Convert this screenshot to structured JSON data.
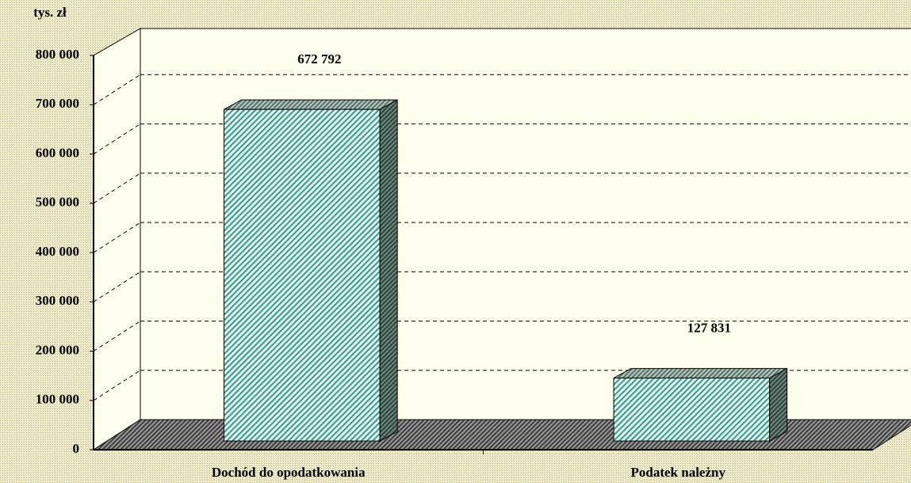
{
  "chart_data": {
    "type": "bar",
    "y_label": "tys. zł",
    "categories": [
      "Dochód do opodatkowania",
      "Podatek należny"
    ],
    "values": [
      672792,
      127831
    ],
    "value_labels": [
      "672 792",
      "127 831"
    ],
    "ylim": [
      0,
      800000
    ],
    "yticks": [
      {
        "value": 0,
        "label": "0"
      },
      {
        "value": 100000,
        "label": "100 000"
      },
      {
        "value": 200000,
        "label": "200 000"
      },
      {
        "value": 300000,
        "label": "300 000"
      },
      {
        "value": 400000,
        "label": "400 000"
      },
      {
        "value": 500000,
        "label": "500 000"
      },
      {
        "value": 600000,
        "label": "600 000"
      },
      {
        "value": 700000,
        "label": "700 000"
      },
      {
        "value": 800000,
        "label": "800 000"
      }
    ],
    "grid": true
  }
}
